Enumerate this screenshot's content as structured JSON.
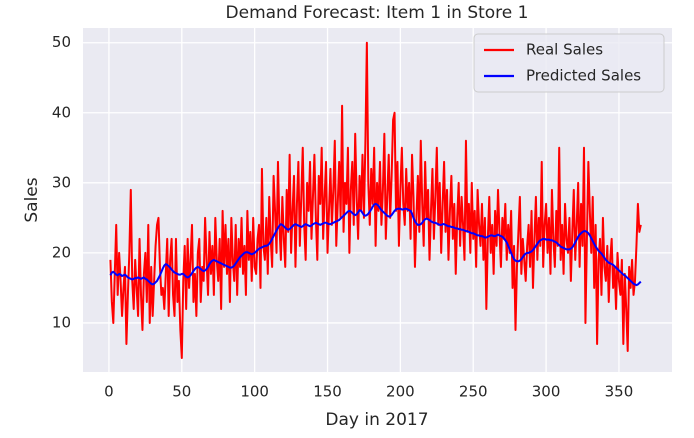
{
  "chart_data": {
    "type": "line",
    "title": "Demand Forecast: Item 1 in Store 1",
    "xlabel": "Day in 2017",
    "ylabel": "Sales",
    "xlim": [
      -17.8,
      386.4
    ],
    "ylim": [
      3,
      52.1
    ],
    "xticks": [
      0,
      50,
      100,
      150,
      200,
      250,
      300,
      350
    ],
    "yticks": [
      10,
      20,
      30,
      40,
      50
    ],
    "grid": true,
    "legend": "upper right",
    "x": [
      1,
      2,
      3,
      4,
      5,
      6,
      7,
      8,
      9,
      10,
      11,
      12,
      13,
      14,
      15,
      16,
      17,
      18,
      19,
      20,
      21,
      22,
      23,
      24,
      25,
      26,
      27,
      28,
      29,
      30,
      31,
      32,
      33,
      34,
      35,
      36,
      37,
      38,
      39,
      40,
      41,
      42,
      43,
      44,
      45,
      46,
      47,
      48,
      49,
      50,
      51,
      52,
      53,
      54,
      55,
      56,
      57,
      58,
      59,
      60,
      61,
      62,
      63,
      64,
      65,
      66,
      67,
      68,
      69,
      70,
      71,
      72,
      73,
      74,
      75,
      76,
      77,
      78,
      79,
      80,
      81,
      82,
      83,
      84,
      85,
      86,
      87,
      88,
      89,
      90,
      91,
      92,
      93,
      94,
      95,
      96,
      97,
      98,
      99,
      100,
      101,
      102,
      103,
      104,
      105,
      106,
      107,
      108,
      109,
      110,
      111,
      112,
      113,
      114,
      115,
      116,
      117,
      118,
      119,
      120,
      121,
      122,
      123,
      124,
      125,
      126,
      127,
      128,
      129,
      130,
      131,
      132,
      133,
      134,
      135,
      136,
      137,
      138,
      139,
      140,
      141,
      142,
      143,
      144,
      145,
      146,
      147,
      148,
      149,
      150,
      151,
      152,
      153,
      154,
      155,
      156,
      157,
      158,
      159,
      160,
      161,
      162,
      163,
      164,
      165,
      166,
      167,
      168,
      169,
      170,
      171,
      172,
      173,
      174,
      175,
      176,
      177,
      178,
      179,
      180,
      181,
      182,
      183,
      184,
      185,
      186,
      187,
      188,
      189,
      190,
      191,
      192,
      193,
      194,
      195,
      196,
      197,
      198,
      199,
      200,
      201,
      202,
      203,
      204,
      205,
      206,
      207,
      208,
      209,
      210,
      211,
      212,
      213,
      214,
      215,
      216,
      217,
      218,
      219,
      220,
      221,
      222,
      223,
      224,
      225,
      226,
      227,
      228,
      229,
      230,
      231,
      232,
      233,
      234,
      235,
      236,
      237,
      238,
      239,
      240,
      241,
      242,
      243,
      244,
      245,
      246,
      247,
      248,
      249,
      250,
      251,
      252,
      253,
      254,
      255,
      256,
      257,
      258,
      259,
      260,
      261,
      262,
      263,
      264,
      265,
      266,
      267,
      268,
      269,
      270,
      271,
      272,
      273,
      274,
      275,
      276,
      277,
      278,
      279,
      280,
      281,
      282,
      283,
      284,
      285,
      286,
      287,
      288,
      289,
      290,
      291,
      292,
      293,
      294,
      295,
      296,
      297,
      298,
      299,
      300,
      301,
      302,
      303,
      304,
      305,
      306,
      307,
      308,
      309,
      310,
      311,
      312,
      313,
      314,
      315,
      316,
      317,
      318,
      319,
      320,
      321,
      322,
      323,
      324,
      325,
      326,
      327,
      328,
      329,
      330,
      331,
      332,
      333,
      334,
      335,
      336,
      337,
      338,
      339,
      340,
      341,
      342,
      343,
      344,
      345,
      346,
      347,
      348,
      349,
      350,
      351,
      352,
      353,
      354,
      355,
      356,
      357,
      358,
      359,
      360,
      361,
      362,
      363,
      364,
      365
    ],
    "series": [
      {
        "name": "Real Sales",
        "color": "#ff0000",
        "values": [
          19,
          13,
          10,
          17,
          24,
          14,
          20,
          16,
          11,
          15,
          18,
          7,
          14,
          20,
          29,
          16,
          12,
          19,
          15,
          11,
          22,
          14,
          9,
          17,
          20,
          13,
          24,
          10,
          18,
          11,
          16,
          21,
          24,
          25,
          18,
          14,
          15,
          12,
          17,
          22,
          11,
          19,
          22,
          14,
          11,
          22,
          13,
          16,
          9,
          5,
          16,
          21,
          12,
          22,
          15,
          19,
          24,
          13,
          17,
          11,
          20,
          22,
          13,
          18,
          16,
          25,
          19,
          14,
          23,
          17,
          21,
          14,
          25,
          19,
          16,
          22,
          12,
          26,
          18,
          24,
          17,
          22,
          13,
          25,
          19,
          16,
          24,
          14,
          22,
          18,
          25,
          17,
          21,
          14,
          26,
          19,
          23,
          16,
          25,
          18,
          17,
          22,
          24,
          15,
          32,
          21,
          19,
          25,
          17,
          28,
          22,
          18,
          31,
          26,
          20,
          33,
          24,
          19,
          28,
          22,
          18,
          29,
          23,
          34,
          20,
          26,
          31,
          18,
          27,
          33,
          21,
          28,
          35,
          24,
          19,
          30,
          26,
          33,
          22,
          28,
          34,
          25,
          19,
          31,
          27,
          35,
          22,
          28,
          33,
          20,
          26,
          32,
          24,
          29,
          36,
          21,
          27,
          33,
          25,
          41,
          23,
          30,
          27,
          35,
          20,
          29,
          33,
          24,
          37,
          28,
          22,
          31,
          26,
          34,
          25,
          36,
          50,
          30,
          24,
          32,
          27,
          35,
          21,
          30,
          26,
          33,
          24,
          29,
          37,
          22,
          28,
          34,
          25,
          31,
          39,
          40,
          26,
          33,
          21,
          29,
          35,
          27,
          24,
          32,
          26,
          30,
          22,
          34,
          28,
          18,
          25,
          31,
          23,
          36,
          27,
          21,
          33,
          25,
          29,
          19,
          26,
          32,
          22,
          28,
          35,
          24,
          30,
          20,
          27,
          33,
          23,
          29,
          19,
          26,
          31,
          22,
          27,
          17,
          25,
          30,
          21,
          28,
          24,
          19,
          36,
          23,
          27,
          20,
          30,
          22,
          26,
          18,
          29,
          24,
          21,
          27,
          19,
          25,
          12,
          22,
          28,
          20,
          24,
          17,
          26,
          21,
          29,
          23,
          18,
          25,
          22,
          27,
          19,
          24,
          20,
          26,
          15,
          21,
          9,
          18,
          23,
          28,
          17,
          22,
          19,
          16,
          21,
          24,
          18,
          26,
          15,
          22,
          28,
          19,
          25,
          21,
          33,
          18,
          24,
          27,
          20,
          25,
          17,
          29,
          22,
          18,
          26,
          21,
          35,
          19,
          24,
          17,
          27,
          22,
          20,
          25,
          16,
          23,
          29,
          19,
          24,
          30,
          18,
          27,
          21,
          35,
          10,
          22,
          33,
          26,
          20,
          28,
          15,
          24,
          7,
          19,
          22,
          14,
          25,
          18,
          16,
          21,
          13,
          19,
          22,
          15,
          18,
          12,
          20,
          16,
          14,
          19,
          7,
          17,
          12,
          6,
          18,
          15,
          19,
          14,
          16,
          21,
          27,
          23,
          24
        ]
      },
      {
        "name": "Predicted Sales",
        "color": "#0000ff",
        "values": [
          16.8,
          17.2,
          17.3,
          17.1,
          16.9,
          16.8,
          17.0,
          16.9,
          16.7,
          16.8,
          16.9,
          16.7,
          16.5,
          16.4,
          16.3,
          16.2,
          16.3,
          16.4,
          16.4,
          16.5,
          16.4,
          16.3,
          16.4,
          16.5,
          16.3,
          16.2,
          16.0,
          15.8,
          15.6,
          15.5,
          15.6,
          15.8,
          16.0,
          16.4,
          16.8,
          17.3,
          17.8,
          18.2,
          18.4,
          18.3,
          18.1,
          17.9,
          17.6,
          17.4,
          17.2,
          17.1,
          17.0,
          16.9,
          16.9,
          17.0,
          17.0,
          16.8,
          16.6,
          16.5,
          16.6,
          16.8,
          17.1,
          17.4,
          17.7,
          17.9,
          18.0,
          17.9,
          17.7,
          17.5,
          17.4,
          17.5,
          17.7,
          18.0,
          18.4,
          18.7,
          18.9,
          19.0,
          18.9,
          18.8,
          18.7,
          18.6,
          18.5,
          18.4,
          18.3,
          18.2,
          18.1,
          18.0,
          17.9,
          17.9,
          18.0,
          18.2,
          18.5,
          18.8,
          19.1,
          19.4,
          19.6,
          19.8,
          20.0,
          20.1,
          20.1,
          20.0,
          19.9,
          19.8,
          19.9,
          20.0,
          20.2,
          20.4,
          20.6,
          20.7,
          20.8,
          20.9,
          21.0,
          21.0,
          21.1,
          21.3,
          21.6,
          22.0,
          22.4,
          22.8,
          23.2,
          23.6,
          23.9,
          24.1,
          24.0,
          23.8,
          23.6,
          23.4,
          23.3,
          23.4,
          23.6,
          23.8,
          24.0,
          24.1,
          24.0,
          23.9,
          23.8,
          23.7,
          23.8,
          24.0,
          24.1,
          24.0,
          23.9,
          23.8,
          23.9,
          24.1,
          24.2,
          24.3,
          24.2,
          24.1,
          24.0,
          24.1,
          24.2,
          24.3,
          24.3,
          24.2,
          24.1,
          24.1,
          24.2,
          24.3,
          24.4,
          24.5,
          24.6,
          24.7,
          24.9,
          25.1,
          25.3,
          25.5,
          25.7,
          25.9,
          26.0,
          25.9,
          25.7,
          25.5,
          25.4,
          25.5,
          25.8,
          26.1,
          26.0,
          25.7,
          25.4,
          25.3,
          25.4,
          25.6,
          25.9,
          26.2,
          26.6,
          26.9,
          27.0,
          26.9,
          26.7,
          26.4,
          26.1,
          25.9,
          25.7,
          25.5,
          25.3,
          25.2,
          25.2,
          25.4,
          25.7,
          26.0,
          26.2,
          26.3,
          26.3,
          26.3,
          26.2,
          26.2,
          26.3,
          26.3,
          26.2,
          26.1,
          26.0,
          25.6,
          25.0,
          24.5,
          24.2,
          24.0,
          24.0,
          24.1,
          24.3,
          24.6,
          24.8,
          24.9,
          24.8,
          24.7,
          24.5,
          24.4,
          24.3,
          24.3,
          24.2,
          24.1,
          24.0,
          24.0,
          24.1,
          24.1,
          24.0,
          23.9,
          23.8,
          23.8,
          23.7,
          23.7,
          23.6,
          23.5,
          23.5,
          23.4,
          23.4,
          23.3,
          23.3,
          23.2,
          23.1,
          23.1,
          23.0,
          22.9,
          22.8,
          22.8,
          22.7,
          22.6,
          22.5,
          22.5,
          22.4,
          22.4,
          22.3,
          22.2,
          22.2,
          22.3,
          22.4,
          22.5,
          22.5,
          22.4,
          22.4,
          22.5,
          22.6,
          22.5,
          22.4,
          22.3,
          22.1,
          21.8,
          21.5,
          21.0,
          20.5,
          20.0,
          19.5,
          19.1,
          18.9,
          18.8,
          18.8,
          18.9,
          19.1,
          19.4,
          19.7,
          19.9,
          20.0,
          20.0,
          20.1,
          20.2,
          20.4,
          20.7,
          21.0,
          21.3,
          21.6,
          21.8,
          21.9,
          22.0,
          22.0,
          21.9,
          21.9,
          21.9,
          21.8,
          21.8,
          21.7,
          21.6,
          21.5,
          21.3,
          21.1,
          20.9,
          20.8,
          20.7,
          20.6,
          20.5,
          20.5,
          20.5,
          20.6,
          20.8,
          21.1,
          21.5,
          21.9,
          22.3,
          22.6,
          22.8,
          23.0,
          23.1,
          23.1,
          23.0,
          22.8,
          22.5,
          22.1,
          21.7,
          21.3,
          20.9,
          20.6,
          20.3,
          20.1,
          19.9,
          19.6,
          19.3,
          19.0,
          18.8,
          18.6,
          18.5,
          18.4,
          18.3,
          18.1,
          17.9,
          17.7,
          17.5,
          17.3,
          17.1,
          16.9,
          16.8,
          16.6,
          16.4,
          16.2,
          16.0,
          15.8,
          15.6,
          15.5,
          15.4,
          15.5,
          15.7,
          15.9
        ]
      }
    ]
  }
}
